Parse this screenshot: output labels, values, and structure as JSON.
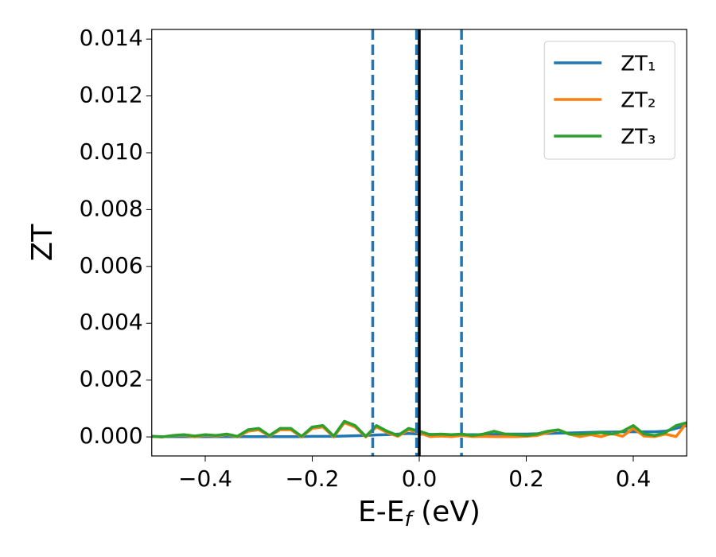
{
  "chart_data": {
    "type": "line",
    "x_label": [
      "E-E",
      "f",
      " (eV)"
    ],
    "y_label": "ZT",
    "x": [
      -0.5,
      -0.48,
      -0.46,
      -0.44,
      -0.42,
      -0.4,
      -0.38,
      -0.36,
      -0.34,
      -0.32,
      -0.3,
      -0.28,
      -0.26,
      -0.24,
      -0.22,
      -0.2,
      -0.18,
      -0.16,
      -0.14,
      -0.12,
      -0.1,
      -0.08,
      -0.06,
      -0.04,
      -0.02,
      0,
      0.02,
      0.04,
      0.06,
      0.08,
      0.1,
      0.12,
      0.14,
      0.16,
      0.18,
      0.2,
      0.22,
      0.24,
      0.26,
      0.28,
      0.3,
      0.32,
      0.34,
      0.36,
      0.38,
      0.4,
      0.42,
      0.44,
      0.46,
      0.48,
      0.5
    ],
    "series": [
      {
        "name": "ZT₁",
        "color": "#1f77b4",
        "values": [
          2e-05,
          1e-05,
          1e-05,
          1e-05,
          1e-05,
          1e-05,
          1e-05,
          1e-05,
          1e-05,
          1e-05,
          1e-05,
          1e-05,
          1e-05,
          1e-05,
          1e-05,
          2e-05,
          2e-05,
          2e-05,
          3e-05,
          4e-05,
          5e-05,
          7e-05,
          8e-05,
          0.0001,
          0.00012,
          0.0001,
          9e-05,
          8e-05,
          8e-05,
          8e-05,
          8e-05,
          8e-05,
          9e-05,
          0.0001,
          0.0001,
          0.0001,
          0.00011,
          0.00012,
          0.00013,
          0.00014,
          0.00015,
          0.00016,
          0.00017,
          0.00017,
          0.00018,
          0.00018,
          0.00018,
          0.00018,
          0.0002,
          0.0003,
          0.0004
        ]
      },
      {
        "name": "ZT₂",
        "color": "#ff7f0e",
        "values": [
          2e-05,
          0.0,
          4e-05,
          6e-05,
          0.0,
          6e-05,
          3e-05,
          8e-05,
          0.0,
          0.0002,
          0.00025,
          3e-05,
          0.00025,
          0.00025,
          0.0,
          0.0003,
          0.00035,
          0.0,
          0.0005,
          0.00035,
          0.0,
          0.00035,
          0.00015,
          2e-05,
          0.00025,
          0.00015,
          1e-05,
          3e-05,
          1e-05,
          5e-05,
          1e-05,
          2e-05,
          1e-05,
          1e-05,
          1e-05,
          2e-05,
          5e-05,
          0.00015,
          0.00025,
          0.0001,
          1e-05,
          8e-05,
          1e-05,
          0.00012,
          2e-05,
          0.0003,
          3e-05,
          1e-05,
          0.0001,
          1e-05,
          0.0005
        ]
      },
      {
        "name": "ZT₃",
        "color": "#2ca02c",
        "values": [
          2e-05,
          0.0,
          5e-05,
          8e-05,
          3e-05,
          8e-05,
          5e-05,
          0.0001,
          2e-05,
          0.00025,
          0.0003,
          5e-05,
          0.0003,
          0.0003,
          2e-05,
          0.00035,
          0.0004,
          3e-05,
          0.00055,
          0.0004,
          2e-05,
          0.0004,
          0.0002,
          5e-05,
          0.0003,
          0.0002,
          8e-05,
          0.0001,
          8e-05,
          0.0001,
          5e-05,
          0.0001,
          0.0002,
          0.0001,
          8e-05,
          5e-05,
          0.0001,
          0.0002,
          0.00025,
          0.0001,
          0.0001,
          0.00012,
          0.00015,
          0.0001,
          0.0002,
          0.0004,
          0.0001,
          5e-05,
          0.00015,
          0.0004,
          0.0005
        ]
      }
    ],
    "vlines": [
      {
        "x": -0.087,
        "color": "#1f77b4",
        "style": "dashed"
      },
      {
        "x": -0.005,
        "color": "#1f77b4",
        "style": "dashed"
      },
      {
        "x": 0,
        "color": "#000000",
        "style": "solid"
      },
      {
        "x": 0.079,
        "color": "#1f77b4",
        "style": "dashed"
      }
    ],
    "xlim": [
      -0.5,
      0.5
    ],
    "xticks": [
      {
        "value": -0.4,
        "label": "−0.4"
      },
      {
        "value": -0.2,
        "label": "−0.2"
      },
      {
        "value": 0,
        "label": "0.0"
      },
      {
        "value": 0.2,
        "label": "0.2"
      },
      {
        "value": 0.4,
        "label": "0.4"
      }
    ],
    "ylim": [
      -0.00067,
      0.01434
    ],
    "yticks": [
      {
        "value": 0,
        "label": "0.000"
      },
      {
        "value": 0.002,
        "label": "0.002"
      },
      {
        "value": 0.004,
        "label": "0.004"
      },
      {
        "value": 0.006,
        "label": "0.006"
      },
      {
        "value": 0.008,
        "label": "0.008"
      },
      {
        "value": 0.01,
        "label": "0.010"
      },
      {
        "value": 0.012,
        "label": "0.012"
      },
      {
        "value": 0.014,
        "label": "0.014"
      }
    ],
    "grid": false,
    "legend": "upper right"
  }
}
